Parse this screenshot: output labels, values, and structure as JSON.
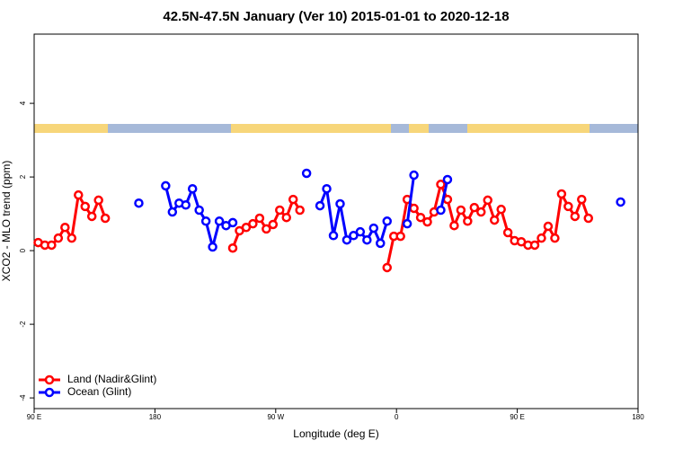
{
  "chart_data": {
    "type": "line",
    "title": "42.5N-47.5N January (Ver 10)   2015-01-01 to 2020-12-18",
    "x_label": "Longitude (deg E)",
    "y_label": "XCO2 - MLO trend (ppm)",
    "xlim": [
      -270,
      180
    ],
    "ylim": [
      -4.29,
      5.88
    ],
    "xticks": [
      {
        "value": -270,
        "label": "90 E"
      },
      {
        "value": -180,
        "label": "180"
      },
      {
        "value": -90,
        "label": "90 W"
      },
      0,
      {
        "value": 90,
        "label": "90 E"
      },
      180
    ],
    "yticks": [
      -4,
      -2,
      0,
      2,
      4
    ],
    "legend": "bottom-left",
    "series": [
      {
        "name": "Land (Nadir&Glint)",
        "color": "#ff0000",
        "x": [
          -267,
          -262,
          -257,
          -252,
          -247,
          -242,
          -237,
          -232,
          -227,
          -222,
          -217,
          -212,
          -122,
          -117,
          -112,
          -107,
          -102,
          -97,
          -92,
          -87,
          -82,
          -77,
          -72,
          -67,
          -7,
          -2,
          3,
          8,
          13,
          18,
          23,
          28,
          33,
          38,
          43,
          48,
          53,
          58,
          63,
          68,
          73,
          78,
          83,
          88,
          93,
          98,
          103,
          108,
          113,
          118,
          123,
          128,
          133,
          138,
          143
        ],
        "values": [
          0.22,
          0.15,
          0.15,
          0.34,
          0.63,
          0.34,
          1.51,
          1.2,
          0.93,
          1.37,
          0.88,
          null,
          0.07,
          0.54,
          0.63,
          0.73,
          0.88,
          0.59,
          0.71,
          1.1,
          0.9,
          1.39,
          1.1,
          null,
          -0.46,
          0.39,
          0.39,
          1.39,
          1.15,
          0.9,
          0.78,
          1.05,
          1.8,
          1.39,
          0.68,
          1.1,
          0.8,
          1.17,
          1.05,
          1.37,
          0.83,
          1.12,
          0.49,
          0.27,
          0.24,
          0.15,
          0.15,
          0.34,
          0.66,
          0.34,
          1.54,
          1.2,
          0.93,
          1.39,
          0.88
        ]
      },
      {
        "name": "Ocean (Glint)",
        "color": "#0000ff",
        "x": [
          -192,
          -187,
          -172,
          -167,
          -162,
          -157,
          -152,
          -147,
          -142,
          -137,
          -132,
          -127,
          -122,
          -117,
          -67,
          -62,
          -57,
          -52,
          -47,
          -42,
          -37,
          -32,
          -27,
          -22,
          -17,
          -12,
          -7,
          -2,
          8,
          13,
          18,
          33,
          38,
          43,
          167
        ],
        "values": [
          1.29,
          null,
          1.76,
          1.05,
          1.29,
          1.24,
          1.68,
          1.1,
          0.8,
          0.1,
          0.8,
          0.68,
          0.76,
          null,
          2.1,
          null,
          1.22,
          1.68,
          0.41,
          1.27,
          0.29,
          0.41,
          0.51,
          0.29,
          0.61,
          0.2,
          0.8,
          null,
          0.73,
          2.05,
          null,
          1.1,
          1.93,
          null,
          1.32
        ]
      }
    ]
  }
}
